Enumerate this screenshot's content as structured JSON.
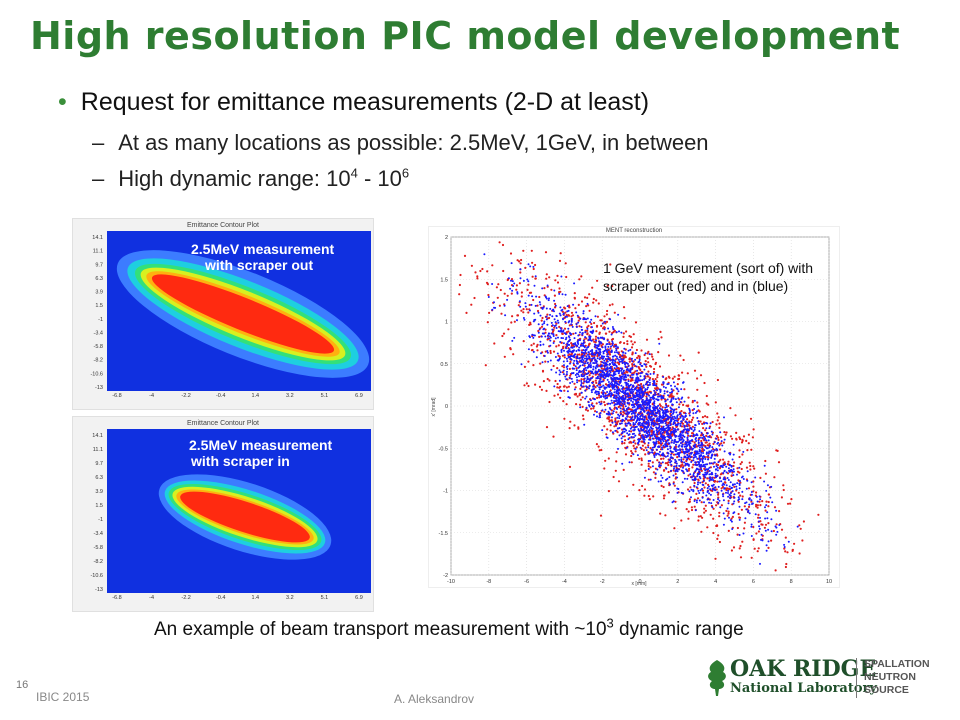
{
  "slide": {
    "title": "High resolution PIC model development",
    "bullet": "Request for emittance measurements (2-D at least)",
    "sub1": "At as many locations as possible: 2.5MeV, 1GeV, in between",
    "sub2_prefix": "High dynamic range: 10",
    "sub2_exp1": "4",
    "sub2_mid": " - 10",
    "sub2_exp2": "6",
    "caption_prefix": "An example of beam transport measurement with ~10",
    "caption_exp": "3",
    "caption_suffix": " dynamic range",
    "page_number": "16",
    "conference": "IBIC 2015",
    "author": "A. Aleksandrov"
  },
  "panel_top": {
    "title": "Emittance Contour Plot",
    "label_line1": "2.5MeV measurement",
    "label_line2": "with scraper out",
    "yticks": [
      "14.1",
      "11.1",
      "9.7",
      "6.3",
      "3.9",
      "1.5",
      "-1",
      "-3.4",
      "-5.8",
      "-8.2",
      "-10.6",
      "-13"
    ],
    "xticks": [
      "-6.8",
      "-4",
      "-2.2",
      "-0.4",
      "1.4",
      "3.2",
      "5.1",
      "6.9"
    ]
  },
  "panel_bottom": {
    "title": "Emittance Contour Plot",
    "label_line1": "2.5MeV measurement",
    "label_line2": "with scraper in",
    "yticks": [
      "14.1",
      "11.1",
      "9.7",
      "6.3",
      "3.9",
      "1.5",
      "-1",
      "-3.4",
      "-5.8",
      "-8.2",
      "-10.6",
      "-13"
    ],
    "xticks": [
      "-6.8",
      "-4",
      "-2.2",
      "-0.4",
      "1.4",
      "3.2",
      "5.1",
      "6.9"
    ]
  },
  "scatter": {
    "title": "MENT reconstruction",
    "annotation_line1": "1 GeV measurement (sort of) with",
    "annotation_line2": "scraper out (red) and in (blue)",
    "xlabel": "x [mm]",
    "ylabel": "x' [mrad]",
    "yticks": [
      "2",
      "1.5",
      "1",
      "0.5",
      "0",
      "-0.5",
      "-1",
      "-1.5",
      "-2"
    ],
    "xticks": [
      "-10",
      "-8",
      "-6",
      "-4",
      "-2",
      "0",
      "2",
      "4",
      "6",
      "8",
      "10"
    ]
  },
  "logo": {
    "oak_ridge": "OAK RIDGE",
    "national_lab": "National Laboratory",
    "sns1": "SPALLATION",
    "sns2": "NEUTRON",
    "sns3": "SOURCE"
  },
  "colors": {
    "title_green": "#2e7d32",
    "red_series": "#e02020",
    "blue_series": "#1a1aff",
    "plot_blue": "#1030e0"
  }
}
